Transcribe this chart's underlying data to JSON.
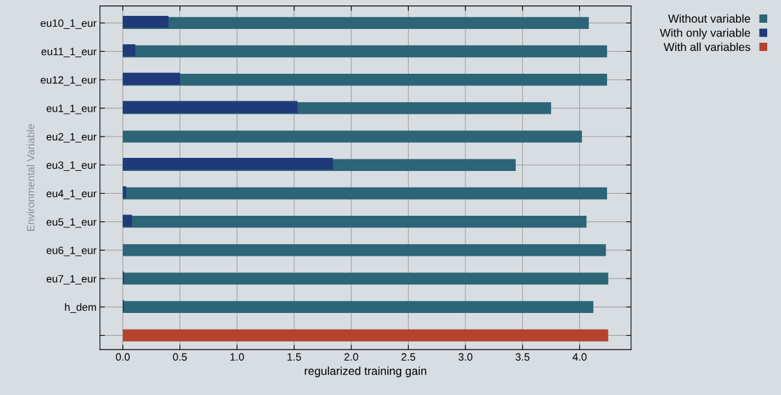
{
  "chart_data": {
    "type": "bar",
    "orientation": "horizontal",
    "xlabel": "regularized training gain",
    "ylabel": "Environmental Variable",
    "categories": [
      "eu10_1_eur",
      "eu11_1_eur",
      "eu12_1_eur",
      "eu1_1_eur",
      "eu2_1_eur",
      "eu3_1_eur",
      "eu4_1_eur",
      "eu5_1_eur",
      "eu6_1_eur",
      "eu7_1_eur",
      "h_dem",
      null
    ],
    "series": [
      {
        "name": "Without variable",
        "color": "#2b6577",
        "values": [
          4.08,
          4.24,
          4.24,
          3.75,
          4.02,
          3.44,
          4.24,
          4.06,
          4.23,
          4.25,
          4.12,
          null
        ]
      },
      {
        "name": "With only variable",
        "color": "#1f3a78",
        "values": [
          0.4,
          0.11,
          0.5,
          1.53,
          0,
          1.84,
          0.03,
          0.08,
          0,
          0.01,
          0.01,
          null
        ]
      },
      {
        "name": "With all variables",
        "color": "#b5442f",
        "values": [
          null,
          null,
          null,
          null,
          null,
          null,
          null,
          null,
          null,
          null,
          null,
          4.25
        ]
      }
    ],
    "xlim": [
      -0.2,
      4.45
    ],
    "xticks": [
      {
        "value": 0,
        "label": "0.0"
      },
      0.5,
      {
        "value": 1,
        "label": "1.0"
      },
      1.5,
      {
        "value": 2,
        "label": "2.0"
      },
      2.5,
      {
        "value": 3,
        "label": "3.0"
      },
      3.5,
      {
        "value": 4,
        "label": "4.0"
      }
    ],
    "grid": true,
    "legend": "top right"
  }
}
